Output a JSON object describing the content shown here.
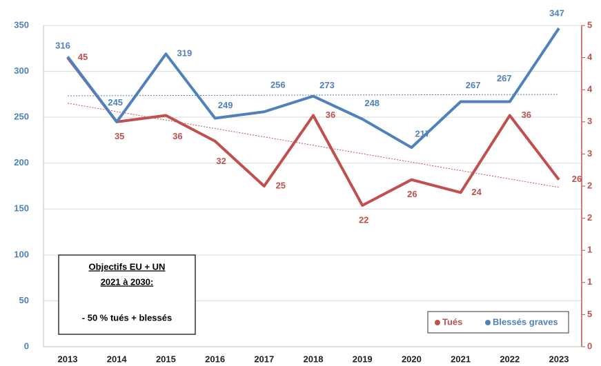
{
  "chart_data": {
    "type": "line",
    "categories": [
      "2013",
      "2014",
      "2015",
      "2016",
      "2017",
      "2018",
      "2019",
      "2020",
      "2021",
      "2022",
      "2023"
    ],
    "series": [
      {
        "name": "Tués",
        "color": "#c0504d",
        "axis": "y2",
        "values": [
          45,
          35,
          36,
          32,
          25,
          36,
          22,
          26,
          24,
          36,
          26
        ],
        "trendline": [
          37.9,
          24.8
        ]
      },
      {
        "name": "Blessés graves",
        "color": "#4f81bd",
        "values": [
          316,
          245,
          319,
          249,
          256,
          273,
          248,
          217,
          267,
          267,
          347
        ],
        "trendline": [
          273.4,
          274.9
        ]
      }
    ],
    "ylim": [
      0,
      350
    ],
    "yticks": [
      0,
      50,
      100,
      150,
      200,
      250,
      300,
      350
    ],
    "y2lim": [
      0,
      50
    ],
    "y2ticks": [
      0,
      5,
      {
        "value": 10,
        "label": "1"
      },
      {
        "value": 15,
        "label": "1"
      },
      {
        "value": 20,
        "label": "2"
      },
      {
        "value": 25,
        "label": "2"
      },
      {
        "value": 30,
        "label": "3"
      },
      {
        "value": 35,
        "label": "3"
      },
      {
        "value": 40,
        "label": "4"
      },
      {
        "value": 45,
        "label": "4"
      },
      {
        "value": 50,
        "label": "5"
      }
    ],
    "grid": true,
    "legend": "bottom-right",
    "annotation": [
      "Objectifs EU + UN",
      "2021 à 2030:",
      "- 50 % tués + blessés"
    ]
  }
}
